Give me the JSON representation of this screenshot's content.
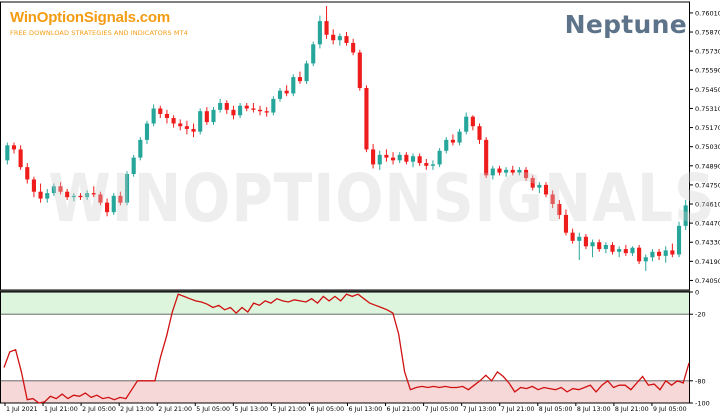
{
  "brand": {
    "logo_text": "WinOptionSignals.com",
    "tagline": "FREE DOWNLOAD STRATEGIES AND INDICATORS MT4"
  },
  "indicator_name": "Neptune",
  "watermark": "WINOPTIONSIGNALS.COM",
  "colors": {
    "bull": "#26a69a",
    "bear": "#ef1c1c",
    "oscillator_line": "#d01010",
    "upper_zone": "#dcf5dc",
    "lower_zone": "#f7d8d8",
    "brand": "#f39c12",
    "indicator_title": "#5d7389"
  },
  "chart_data": [
    {
      "type": "candlestick",
      "title": "",
      "ylim": [
        0.7398,
        0.7609
      ],
      "y_ticks": [
        "0.76010",
        "0.75870",
        "0.75730",
        "0.75590",
        "0.75450",
        "0.75310",
        "0.75170",
        "0.75030",
        "0.74890",
        "0.74750",
        "0.74610",
        "0.74470",
        "0.74330",
        "0.74190",
        "0.74050"
      ],
      "candles": [
        {
          "o": 0.7493,
          "h": 0.7506,
          "l": 0.749,
          "c": 0.7504
        },
        {
          "o": 0.7504,
          "h": 0.7506,
          "l": 0.7498,
          "c": 0.7501
        },
        {
          "o": 0.7501,
          "h": 0.7504,
          "l": 0.7486,
          "c": 0.7488
        },
        {
          "o": 0.7488,
          "h": 0.7491,
          "l": 0.7476,
          "c": 0.7479
        },
        {
          "o": 0.7479,
          "h": 0.7481,
          "l": 0.7466,
          "c": 0.747
        },
        {
          "o": 0.747,
          "h": 0.7476,
          "l": 0.7462,
          "c": 0.7465
        },
        {
          "o": 0.7465,
          "h": 0.7472,
          "l": 0.7462,
          "c": 0.7469
        },
        {
          "o": 0.7469,
          "h": 0.7476,
          "l": 0.7467,
          "c": 0.7474
        },
        {
          "o": 0.7474,
          "h": 0.7477,
          "l": 0.7468,
          "c": 0.747
        },
        {
          "o": 0.747,
          "h": 0.7472,
          "l": 0.7464,
          "c": 0.7466
        },
        {
          "o": 0.7466,
          "h": 0.7469,
          "l": 0.7463,
          "c": 0.7467
        },
        {
          "o": 0.7467,
          "h": 0.7469,
          "l": 0.7464,
          "c": 0.7466
        },
        {
          "o": 0.7466,
          "h": 0.7471,
          "l": 0.7464,
          "c": 0.7469
        },
        {
          "o": 0.7469,
          "h": 0.7474,
          "l": 0.7466,
          "c": 0.7468
        },
        {
          "o": 0.7468,
          "h": 0.747,
          "l": 0.746,
          "c": 0.7462
        },
        {
          "o": 0.7462,
          "h": 0.7465,
          "l": 0.7452,
          "c": 0.7455
        },
        {
          "o": 0.7455,
          "h": 0.7469,
          "l": 0.7453,
          "c": 0.7467
        },
        {
          "o": 0.7467,
          "h": 0.747,
          "l": 0.746,
          "c": 0.7462
        },
        {
          "o": 0.7462,
          "h": 0.7485,
          "l": 0.746,
          "c": 0.7483
        },
        {
          "o": 0.7483,
          "h": 0.7497,
          "l": 0.7481,
          "c": 0.7495
        },
        {
          "o": 0.7495,
          "h": 0.751,
          "l": 0.7493,
          "c": 0.7508
        },
        {
          "o": 0.7508,
          "h": 0.7522,
          "l": 0.7505,
          "c": 0.752
        },
        {
          "o": 0.752,
          "h": 0.7534,
          "l": 0.7518,
          "c": 0.7531
        },
        {
          "o": 0.7531,
          "h": 0.7533,
          "l": 0.7524,
          "c": 0.7527
        },
        {
          "o": 0.7527,
          "h": 0.753,
          "l": 0.752,
          "c": 0.7524
        },
        {
          "o": 0.7524,
          "h": 0.7526,
          "l": 0.7517,
          "c": 0.752
        },
        {
          "o": 0.752,
          "h": 0.7523,
          "l": 0.7515,
          "c": 0.7518
        },
        {
          "o": 0.7518,
          "h": 0.7522,
          "l": 0.7512,
          "c": 0.7516
        },
        {
          "o": 0.7516,
          "h": 0.752,
          "l": 0.751,
          "c": 0.7514
        },
        {
          "o": 0.7514,
          "h": 0.7531,
          "l": 0.7512,
          "c": 0.7529
        },
        {
          "o": 0.7529,
          "h": 0.7532,
          "l": 0.7519,
          "c": 0.7521
        },
        {
          "o": 0.7521,
          "h": 0.7532,
          "l": 0.7519,
          "c": 0.753
        },
        {
          "o": 0.753,
          "h": 0.7538,
          "l": 0.7528,
          "c": 0.7535
        },
        {
          "o": 0.7535,
          "h": 0.7537,
          "l": 0.7527,
          "c": 0.753
        },
        {
          "o": 0.753,
          "h": 0.7533,
          "l": 0.7523,
          "c": 0.7526
        },
        {
          "o": 0.7526,
          "h": 0.7535,
          "l": 0.7524,
          "c": 0.7533
        },
        {
          "o": 0.7533,
          "h": 0.7535,
          "l": 0.7529,
          "c": 0.7531
        },
        {
          "o": 0.7531,
          "h": 0.7535,
          "l": 0.7528,
          "c": 0.753
        },
        {
          "o": 0.753,
          "h": 0.7533,
          "l": 0.7526,
          "c": 0.7529
        },
        {
          "o": 0.7529,
          "h": 0.7532,
          "l": 0.7525,
          "c": 0.7528
        },
        {
          "o": 0.7528,
          "h": 0.754,
          "l": 0.7526,
          "c": 0.7538
        },
        {
          "o": 0.7538,
          "h": 0.7546,
          "l": 0.7536,
          "c": 0.7544
        },
        {
          "o": 0.7544,
          "h": 0.7548,
          "l": 0.754,
          "c": 0.7542
        },
        {
          "o": 0.7542,
          "h": 0.7556,
          "l": 0.754,
          "c": 0.7554
        },
        {
          "o": 0.7554,
          "h": 0.7558,
          "l": 0.7549,
          "c": 0.7551
        },
        {
          "o": 0.7551,
          "h": 0.7566,
          "l": 0.7549,
          "c": 0.7564
        },
        {
          "o": 0.7564,
          "h": 0.758,
          "l": 0.7562,
          "c": 0.7578
        },
        {
          "o": 0.7578,
          "h": 0.7599,
          "l": 0.7575,
          "c": 0.7595
        },
        {
          "o": 0.7595,
          "h": 0.7606,
          "l": 0.7582,
          "c": 0.7585
        },
        {
          "o": 0.7585,
          "h": 0.7589,
          "l": 0.7578,
          "c": 0.7581
        },
        {
          "o": 0.7581,
          "h": 0.7586,
          "l": 0.7577,
          "c": 0.7584
        },
        {
          "o": 0.7584,
          "h": 0.7587,
          "l": 0.7577,
          "c": 0.7579
        },
        {
          "o": 0.7579,
          "h": 0.7582,
          "l": 0.757,
          "c": 0.7572
        },
        {
          "o": 0.7572,
          "h": 0.7574,
          "l": 0.7544,
          "c": 0.7546
        },
        {
          "o": 0.7546,
          "h": 0.7548,
          "l": 0.7499,
          "c": 0.7501
        },
        {
          "o": 0.7501,
          "h": 0.7505,
          "l": 0.7487,
          "c": 0.749
        },
        {
          "o": 0.749,
          "h": 0.75,
          "l": 0.7486,
          "c": 0.7497
        },
        {
          "o": 0.7497,
          "h": 0.7501,
          "l": 0.7492,
          "c": 0.7495
        },
        {
          "o": 0.7495,
          "h": 0.7499,
          "l": 0.749,
          "c": 0.7493
        },
        {
          "o": 0.7493,
          "h": 0.7499,
          "l": 0.7491,
          "c": 0.7497
        },
        {
          "o": 0.7497,
          "h": 0.7499,
          "l": 0.749,
          "c": 0.7492
        },
        {
          "o": 0.7492,
          "h": 0.7498,
          "l": 0.7488,
          "c": 0.7496
        },
        {
          "o": 0.7496,
          "h": 0.7498,
          "l": 0.7489,
          "c": 0.7491
        },
        {
          "o": 0.7491,
          "h": 0.7494,
          "l": 0.7486,
          "c": 0.7489
        },
        {
          "o": 0.7489,
          "h": 0.7493,
          "l": 0.7486,
          "c": 0.749
        },
        {
          "o": 0.749,
          "h": 0.7502,
          "l": 0.7488,
          "c": 0.75
        },
        {
          "o": 0.75,
          "h": 0.751,
          "l": 0.7498,
          "c": 0.7508
        },
        {
          "o": 0.7508,
          "h": 0.7512,
          "l": 0.7504,
          "c": 0.7506
        },
        {
          "o": 0.7506,
          "h": 0.7516,
          "l": 0.7504,
          "c": 0.7514
        },
        {
          "o": 0.7514,
          "h": 0.7528,
          "l": 0.7512,
          "c": 0.7525
        },
        {
          "o": 0.7525,
          "h": 0.7526,
          "l": 0.7515,
          "c": 0.7518
        },
        {
          "o": 0.7518,
          "h": 0.752,
          "l": 0.7505,
          "c": 0.7508
        },
        {
          "o": 0.7508,
          "h": 0.751,
          "l": 0.748,
          "c": 0.7482
        },
        {
          "o": 0.7482,
          "h": 0.7489,
          "l": 0.7479,
          "c": 0.7487
        },
        {
          "o": 0.7487,
          "h": 0.7489,
          "l": 0.7482,
          "c": 0.7484
        },
        {
          "o": 0.7484,
          "h": 0.7488,
          "l": 0.7481,
          "c": 0.7486
        },
        {
          "o": 0.7486,
          "h": 0.7489,
          "l": 0.7482,
          "c": 0.7484
        },
        {
          "o": 0.7484,
          "h": 0.7488,
          "l": 0.7482,
          "c": 0.7486
        },
        {
          "o": 0.7486,
          "h": 0.7488,
          "l": 0.7478,
          "c": 0.748
        },
        {
          "o": 0.748,
          "h": 0.7482,
          "l": 0.7471,
          "c": 0.7473
        },
        {
          "o": 0.7473,
          "h": 0.7477,
          "l": 0.7469,
          "c": 0.7475
        },
        {
          "o": 0.7475,
          "h": 0.7477,
          "l": 0.7466,
          "c": 0.7468
        },
        {
          "o": 0.7468,
          "h": 0.7471,
          "l": 0.7458,
          "c": 0.7461
        },
        {
          "o": 0.7461,
          "h": 0.7464,
          "l": 0.745,
          "c": 0.7453
        },
        {
          "o": 0.7453,
          "h": 0.7457,
          "l": 0.7438,
          "c": 0.744
        },
        {
          "o": 0.744,
          "h": 0.7443,
          "l": 0.7432,
          "c": 0.7434
        },
        {
          "o": 0.7434,
          "h": 0.744,
          "l": 0.742,
          "c": 0.7437
        },
        {
          "o": 0.7437,
          "h": 0.7439,
          "l": 0.7428,
          "c": 0.743
        },
        {
          "o": 0.743,
          "h": 0.7435,
          "l": 0.7422,
          "c": 0.7433
        },
        {
          "o": 0.7433,
          "h": 0.7435,
          "l": 0.7426,
          "c": 0.7428
        },
        {
          "o": 0.7428,
          "h": 0.7433,
          "l": 0.7425,
          "c": 0.7431
        },
        {
          "o": 0.7431,
          "h": 0.7433,
          "l": 0.7424,
          "c": 0.7426
        },
        {
          "o": 0.7426,
          "h": 0.743,
          "l": 0.7422,
          "c": 0.7428
        },
        {
          "o": 0.7428,
          "h": 0.7431,
          "l": 0.7423,
          "c": 0.7425
        },
        {
          "o": 0.7425,
          "h": 0.743,
          "l": 0.7423,
          "c": 0.7429
        },
        {
          "o": 0.7429,
          "h": 0.7431,
          "l": 0.7417,
          "c": 0.7419
        },
        {
          "o": 0.7419,
          "h": 0.7424,
          "l": 0.7412,
          "c": 0.7422
        },
        {
          "o": 0.7422,
          "h": 0.7428,
          "l": 0.7419,
          "c": 0.7426
        },
        {
          "o": 0.7426,
          "h": 0.7428,
          "l": 0.742,
          "c": 0.7423
        },
        {
          "o": 0.7423,
          "h": 0.743,
          "l": 0.7418,
          "c": 0.7427
        },
        {
          "o": 0.7427,
          "h": 0.7432,
          "l": 0.7422,
          "c": 0.7424
        },
        {
          "o": 0.7424,
          "h": 0.7448,
          "l": 0.7422,
          "c": 0.7445
        },
        {
          "o": 0.7445,
          "h": 0.7464,
          "l": 0.7442,
          "c": 0.746
        }
      ]
    },
    {
      "type": "line",
      "title": "",
      "ylim": [
        -100,
        0
      ],
      "y_ticks": [
        "0",
        "-20",
        "-80",
        "-100"
      ],
      "levels": [
        -20,
        -80
      ],
      "x_labels": [
        "1 Jul 2021",
        "1 Jul 21:00",
        "2 Jul 05:00",
        "2 Jul 13:00",
        "2 Jul 21:00",
        "5 Jul 05:00",
        "5 Jul 13:00",
        "5 Jul 21:00",
        "6 Jul 05:00",
        "6 Jul 13:00",
        "6 Jul 21:00",
        "7 Jul 05:00",
        "7 Jul 13:00",
        "7 Jul 21:00",
        "8 Jul 05:00",
        "8 Jul 13:00",
        "8 Jul 21:00",
        "9 Jul 05:00"
      ],
      "values": [
        -68,
        -54,
        -52,
        -72,
        -97,
        -96,
        -100,
        -99,
        -94,
        -96,
        -92,
        -96,
        -93,
        -94,
        -91,
        -95,
        -93,
        -96,
        -95,
        -97,
        -95,
        -96,
        -88,
        -80,
        -80,
        -80,
        -80,
        -58,
        -40,
        -18,
        -2,
        -4,
        -6,
        -8,
        -9,
        -11,
        -14,
        -12,
        -16,
        -14,
        -19,
        -14,
        -18,
        -10,
        -12,
        -8,
        -10,
        -6,
        -8,
        -9,
        -7,
        -8,
        -9,
        -6,
        -10,
        -4,
        -8,
        -4,
        -8,
        -2,
        -4,
        -2,
        -6,
        -10,
        -12,
        -14,
        -16,
        -19,
        -38,
        -72,
        -88,
        -86,
        -85,
        -86,
        -85,
        -86,
        -85,
        -86,
        -86,
        -85,
        -88,
        -84,
        -80,
        -75,
        -80,
        -72,
        -76,
        -82,
        -90,
        -86,
        -87,
        -85,
        -88,
        -86,
        -87,
        -88,
        -86,
        -90,
        -87,
        -88,
        -86,
        -84,
        -90,
        -84,
        -80,
        -86,
        -84,
        -84,
        -88,
        -82,
        -76,
        -84,
        -83,
        -88,
        -80,
        -84,
        -80,
        -82,
        -64
      ]
    }
  ]
}
